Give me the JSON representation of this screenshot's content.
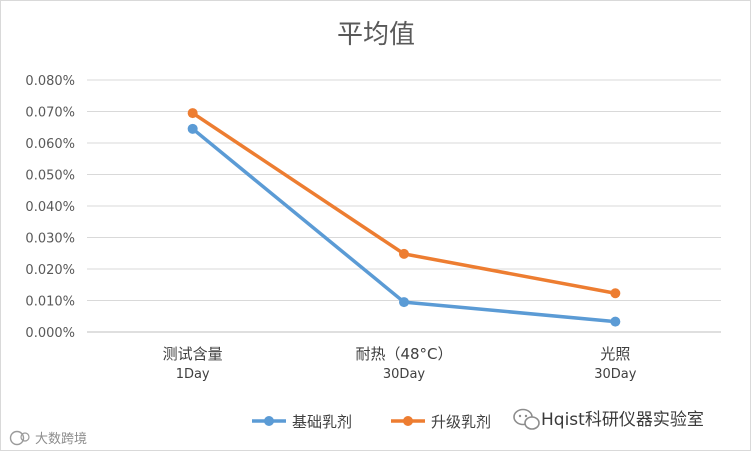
{
  "chart_data": {
    "type": "line",
    "title": "平均值",
    "categories": [
      {
        "line1": "测试含量",
        "line2": "1Day"
      },
      {
        "line1": "耐热（48°C）",
        "line2": "30Day"
      },
      {
        "line1": "光照",
        "line2": "30Day"
      }
    ],
    "y_ticks": [
      "0.000%",
      "0.010%",
      "0.020%",
      "0.030%",
      "0.040%",
      "0.050%",
      "0.060%",
      "0.070%",
      "0.080%"
    ],
    "ylim": [
      0,
      0.08
    ],
    "grid": true,
    "legend_position": "bottom",
    "series": [
      {
        "name": "基础乳剂",
        "color": "#5b9bd5",
        "values": [
          0.0645,
          0.0095,
          0.0033
        ]
      },
      {
        "name": "升级乳剂",
        "color": "#ed7d31",
        "values": [
          0.0695,
          0.0248,
          0.0123
        ]
      }
    ]
  },
  "watermark": {
    "brand": "Hqist科研仪器实验室",
    "corner": "大数跨境"
  }
}
